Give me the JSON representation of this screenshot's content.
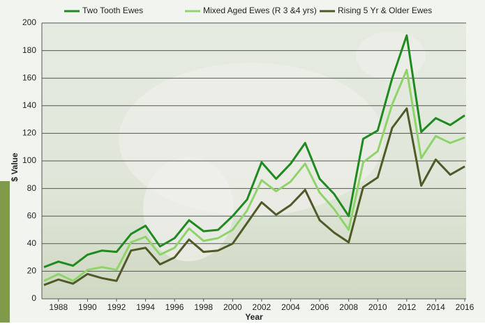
{
  "chart_data": {
    "type": "line",
    "x_label": "Year",
    "y_label": "$ Value",
    "x": [
      1987,
      1988,
      1989,
      1990,
      1991,
      1992,
      1993,
      1994,
      1995,
      1996,
      1997,
      1998,
      1999,
      2000,
      2001,
      2002,
      2003,
      2004,
      2005,
      2006,
      2007,
      2008,
      2009,
      2010,
      2011,
      2012,
      2013,
      2014,
      2015,
      2016
    ],
    "series": [
      {
        "name": "Two Tooth Ewes",
        "color": "#1f8a1f",
        "values": [
          23,
          27,
          24,
          32,
          35,
          34,
          47,
          53,
          38,
          44,
          57,
          49,
          50,
          60,
          72,
          99,
          87,
          98,
          113,
          87,
          76,
          60,
          116,
          122,
          160,
          191,
          121,
          131,
          126,
          133
        ]
      },
      {
        "name": "Mixed Aged Ewes (R 3 &4 yrs)",
        "color": "#8fd46a",
        "values": [
          13,
          18,
          13,
          21,
          23,
          21,
          41,
          45,
          32,
          37,
          51,
          42,
          44,
          50,
          64,
          86,
          78,
          85,
          98,
          77,
          65,
          50,
          99,
          107,
          141,
          166,
          102,
          118,
          113,
          117
        ]
      },
      {
        "name": "Rising 5 Yr & Older Ewes",
        "color": "#4f5a28",
        "values": [
          10,
          14,
          11,
          18,
          15,
          13,
          35,
          37,
          25,
          30,
          43,
          34,
          35,
          40,
          55,
          70,
          61,
          68,
          79,
          57,
          48,
          41,
          81,
          88,
          124,
          138,
          82,
          101,
          90,
          96
        ]
      }
    ],
    "xlim": [
      1987,
      2016
    ],
    "xticks": [
      1988,
      1990,
      1992,
      1994,
      1996,
      1998,
      2000,
      2002,
      2004,
      2006,
      2008,
      2010,
      2012,
      2014,
      2016
    ],
    "ylim": [
      0,
      200
    ],
    "yticks": [
      0,
      20,
      40,
      60,
      80,
      100,
      120,
      140,
      160,
      180,
      200
    ],
    "grid": true,
    "legend": "top"
  }
}
